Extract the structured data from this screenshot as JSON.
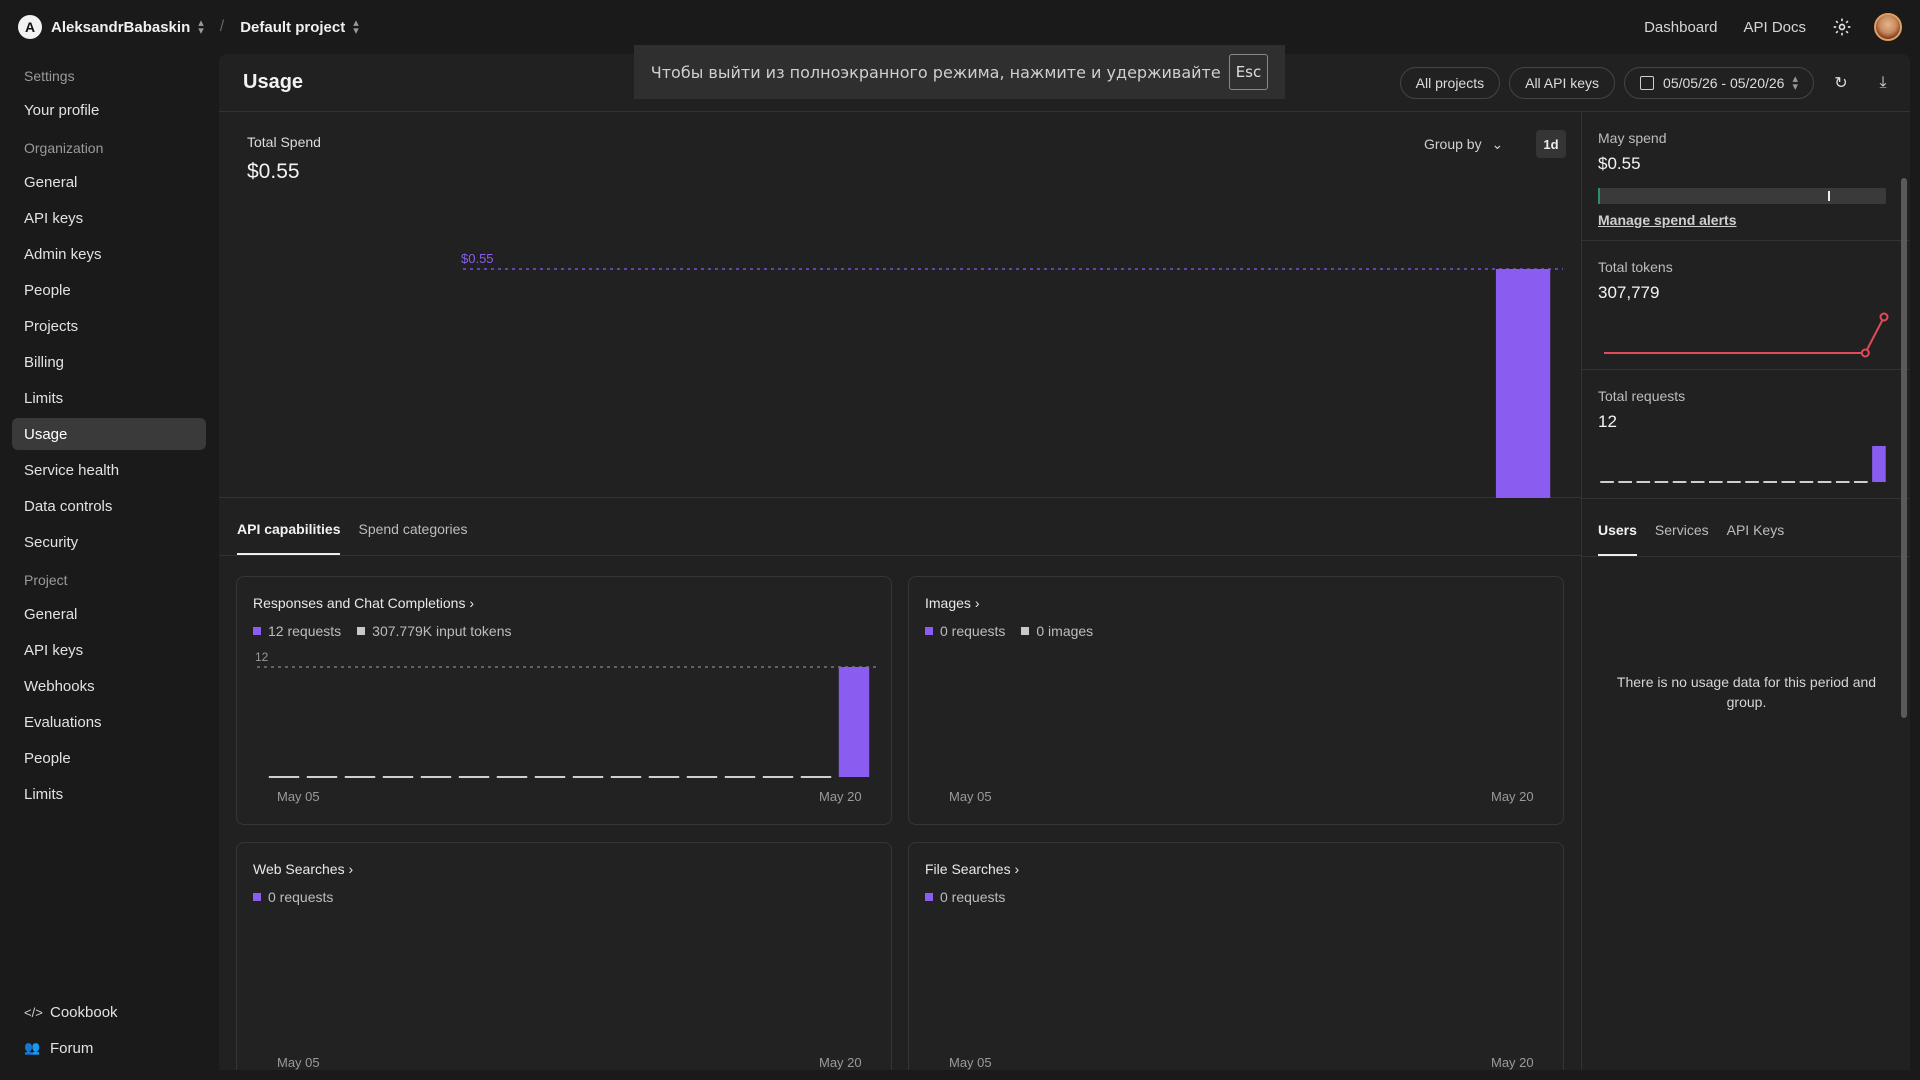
{
  "topbar": {
    "org_initial": "A",
    "org_name": "AleksandrBabaskin",
    "separator": "/",
    "project_name": "Default project",
    "links": [
      "Dashboard",
      "API Docs"
    ]
  },
  "sidebar": {
    "settings_label": "Settings",
    "your_profile": "Your profile",
    "org_label": "Organization",
    "org_items": [
      "General",
      "API keys",
      "Admin keys",
      "People",
      "Projects",
      "Billing",
      "Limits",
      "Usage",
      "Service health",
      "Data controls",
      "Security"
    ],
    "project_label": "Project",
    "project_items": [
      "General",
      "API keys",
      "Webhooks",
      "Evaluations",
      "People",
      "Limits"
    ],
    "bottom": {
      "cookbook": "Cookbook",
      "forum": "Forum",
      "cookbook_icon": "code-icon",
      "forum_icon": "people-icon"
    }
  },
  "header": {
    "title": "Usage",
    "filter_projects": "All projects",
    "filter_keys": "All API keys",
    "date_range": "05/05/26 - 05/20/26"
  },
  "toast": {
    "text": "Чтобы выйти из полноэкранного режима, нажмите и удерживайте",
    "key": "Esc"
  },
  "spend": {
    "label": "Total Spend",
    "value": "$0.55",
    "group_by": "Group by",
    "interval": "1d"
  },
  "right": {
    "may_spend_label": "May spend",
    "may_spend_value": "$0.55",
    "may_spend_fill": 0.008,
    "may_spend_marker": 0.8,
    "manage_alerts": "Manage spend alerts",
    "tokens_label": "Total tokens",
    "tokens_value": "307,779",
    "requests_label": "Total requests",
    "requests_value": "12",
    "tabs": [
      "Users",
      "Services",
      "API Keys"
    ],
    "empty": "There is no usage data for this period and group."
  },
  "tabs": [
    "API capabilities",
    "Spend categories"
  ],
  "cards": [
    {
      "title": "Responses and Chat Completions",
      "legend": [
        "12 requests",
        "307.779K input tokens"
      ],
      "date_start": "May 05",
      "date_end": "May 20"
    },
    {
      "title": "Images",
      "legend": [
        "0 requests",
        "0 images"
      ],
      "date_start": "May 05",
      "date_end": "May 20"
    },
    {
      "title": "Web Searches",
      "legend": [
        "0 requests"
      ],
      "date_start": "May 05",
      "date_end": "May 20"
    },
    {
      "title": "File Searches",
      "legend": [
        "0 requests"
      ],
      "date_start": "May 05",
      "date_end": "May 20"
    }
  ],
  "colors": {
    "accent": "#8a5cf0",
    "legend_secondary": "#c8c8c8",
    "token_line": "#e04a5a",
    "spend_fill": "#2f8f6a"
  },
  "chart_data": [
    {
      "type": "bar",
      "x_start": "May 05",
      "x_end": "May 20",
      "ref_label": "$0.55",
      "values": [
        0,
        0,
        0,
        0,
        0,
        0,
        0,
        0,
        0,
        0,
        0,
        0,
        0,
        0,
        0,
        0.55
      ],
      "ylim": [
        0,
        0.55
      ]
    },
    {
      "type": "bar",
      "x_start": "May 05",
      "x_end": "May 20",
      "ref_label": "12",
      "values": [
        0,
        0,
        0,
        0,
        0,
        0,
        0,
        0,
        0,
        0,
        0,
        0,
        0,
        0,
        0,
        12
      ],
      "ylim": [
        0,
        12
      ]
    },
    {
      "type": "line",
      "values": [
        0,
        0,
        0,
        0,
        0,
        0,
        0,
        0,
        0,
        0,
        0,
        0,
        0,
        0,
        0,
        307779
      ],
      "ylim": [
        0,
        307779
      ]
    },
    {
      "type": "bar",
      "values": [
        0,
        0,
        0,
        0,
        0,
        0,
        0,
        0,
        0,
        0,
        0,
        0,
        0,
        0,
        0,
        12
      ],
      "ylim": [
        0,
        12
      ]
    }
  ]
}
